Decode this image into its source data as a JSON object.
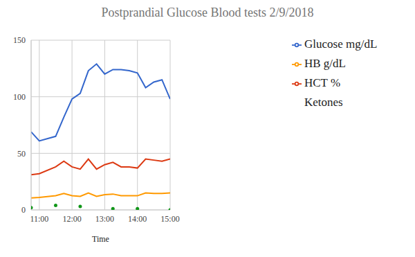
{
  "chart_data": {
    "type": "line",
    "title": "Postprandial Glucose Blood tests 2/9/2018",
    "x_label": "Time",
    "x": [
      10.75,
      11,
      11.5,
      11.75,
      12,
      12.25,
      12.5,
      12.75,
      13,
      13.25,
      13.5,
      13.75,
      14,
      14.25,
      14.5,
      14.75,
      15
    ],
    "series": [
      {
        "name": "Glucose mg/dL",
        "color": "#3366cc",
        "values": [
          69,
          61,
          65,
          82,
          98,
          103,
          123,
          129,
          120,
          124,
          124,
          123,
          121,
          108,
          113,
          115,
          98
        ]
      },
      {
        "name": "HCT %",
        "color": "#dc3912",
        "values": [
          31,
          32,
          38,
          43,
          38,
          36,
          45,
          36,
          40,
          42,
          38,
          38,
          37,
          45,
          44,
          43,
          45
        ]
      },
      {
        "name": "HB g/dL",
        "color": "#ff9900",
        "values": [
          10.5,
          11,
          12.5,
          14.5,
          12.5,
          12,
          15,
          12,
          13.5,
          14,
          12.5,
          12.5,
          12.5,
          15,
          14.5,
          14.5,
          15
        ]
      },
      {
        "name": "Ketones",
        "color": "#109618",
        "type": "scatter",
        "marker": "circle",
        "values": [
          2,
          null,
          4,
          null,
          null,
          3,
          null,
          null,
          null,
          1,
          null,
          null,
          1,
          null,
          null,
          null,
          0
        ]
      }
    ],
    "xlim": [
      10.75,
      15
    ],
    "xticks": [
      {
        "value": 11,
        "label": "11:00"
      },
      {
        "value": 12,
        "label": "12:00"
      },
      {
        "value": 13,
        "label": "13:00"
      },
      {
        "value": 14,
        "label": "14:00"
      },
      {
        "value": 15,
        "label": "15:00"
      }
    ],
    "ylim": [
      0,
      150
    ],
    "yticks": [
      0,
      50,
      100,
      150
    ],
    "grid": true,
    "legend": "right"
  }
}
